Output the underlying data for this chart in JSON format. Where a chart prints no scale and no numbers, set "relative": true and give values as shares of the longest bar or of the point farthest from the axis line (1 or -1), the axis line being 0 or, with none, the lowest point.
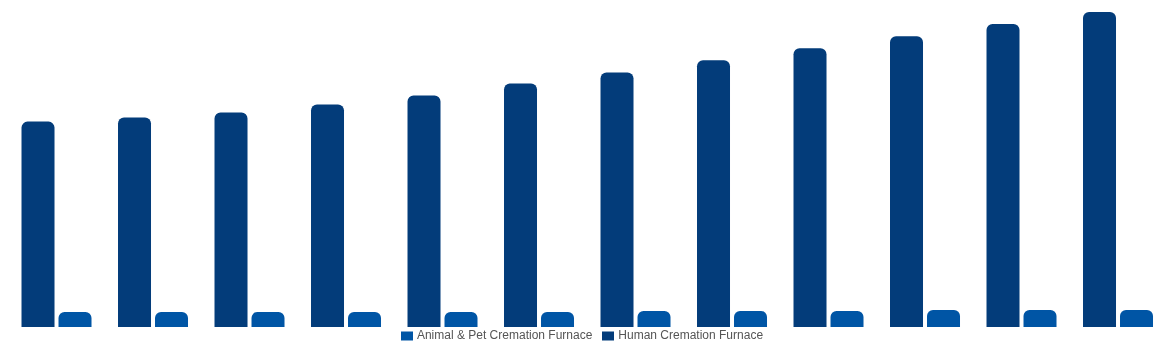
{
  "chart_data": {
    "type": "bar",
    "relative": true,
    "legend": "bottom",
    "categories": [
      null,
      null,
      null,
      null,
      null,
      null,
      null,
      null,
      null,
      null,
      null,
      null
    ],
    "series": [
      {
        "name": "Human Cremation Furnace",
        "color": "#033c7a",
        "values": [
          0.652,
          0.665,
          0.681,
          0.706,
          0.735,
          0.773,
          0.808,
          0.847,
          0.885,
          0.923,
          0.962,
          1
        ]
      },
      {
        "name": "Animal & Pet Cremation Furnace",
        "color": "#0055a5",
        "values": [
          0.048,
          0.048,
          0.048,
          0.048,
          0.048,
          0.048,
          0.051,
          0.051,
          0.051,
          0.054,
          0.054,
          0.054
        ]
      }
    ]
  }
}
